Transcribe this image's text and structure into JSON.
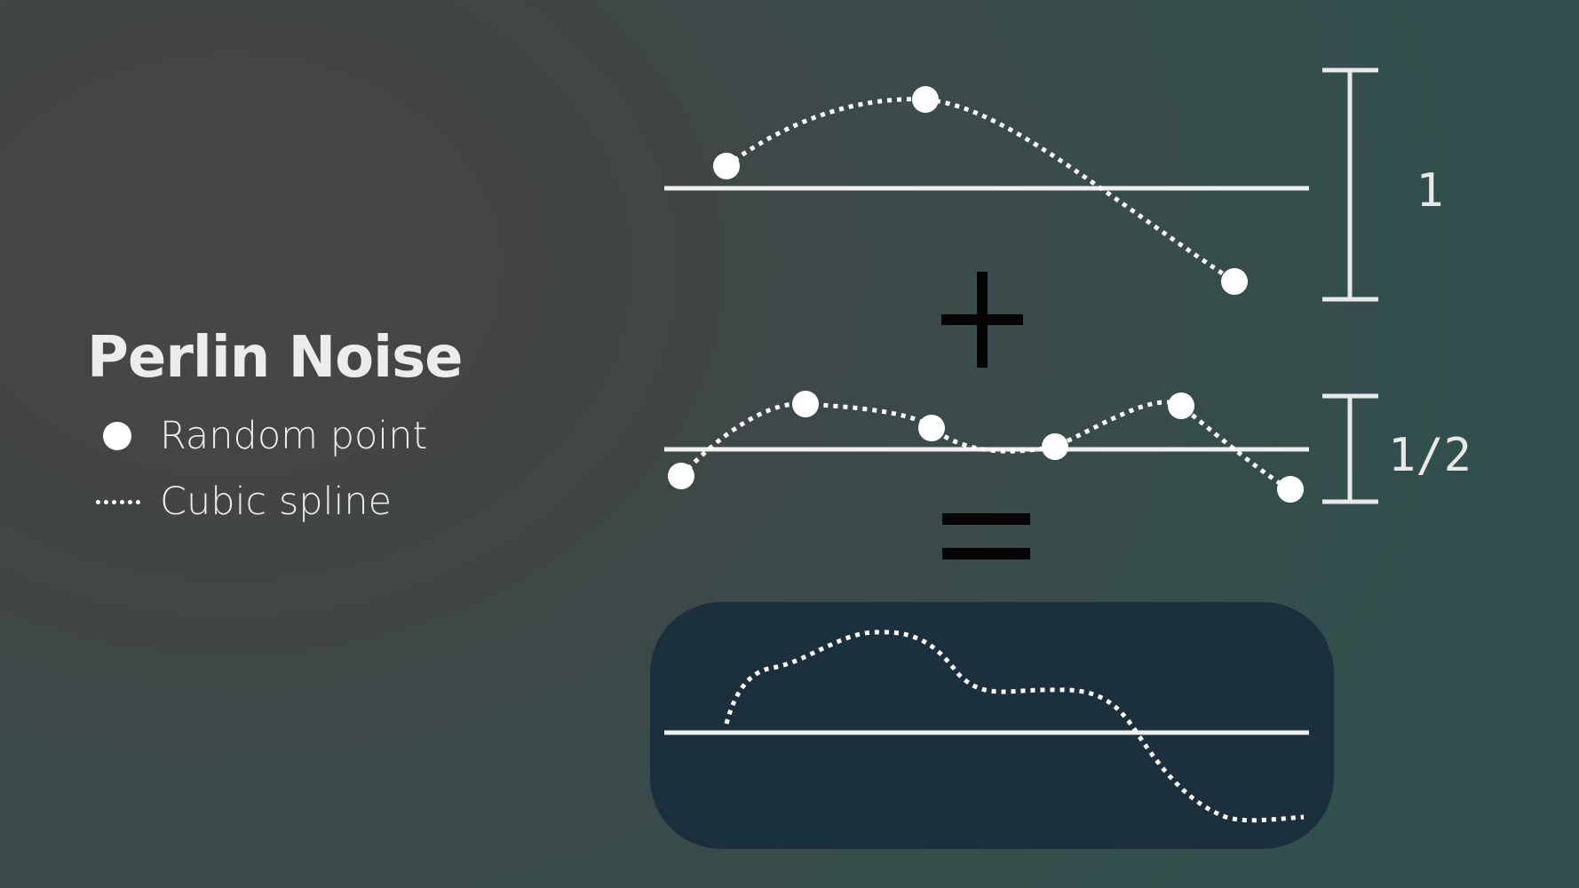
{
  "title": "Perlin Noise",
  "legend": [
    {
      "symbol": "dot",
      "label": "Random point"
    },
    {
      "symbol": "dotted-line",
      "label": "Cubic spline"
    }
  ],
  "octaves": [
    {
      "scale_label": "1",
      "random_points": 3
    },
    {
      "scale_label": "1/2",
      "random_points": 6
    }
  ],
  "operators": {
    "plus": "+",
    "equals": "="
  },
  "colors": {
    "background": "#3e4a4a",
    "result_panel": "#1c2f3c",
    "line": "#efefef",
    "operator": "#050505"
  }
}
